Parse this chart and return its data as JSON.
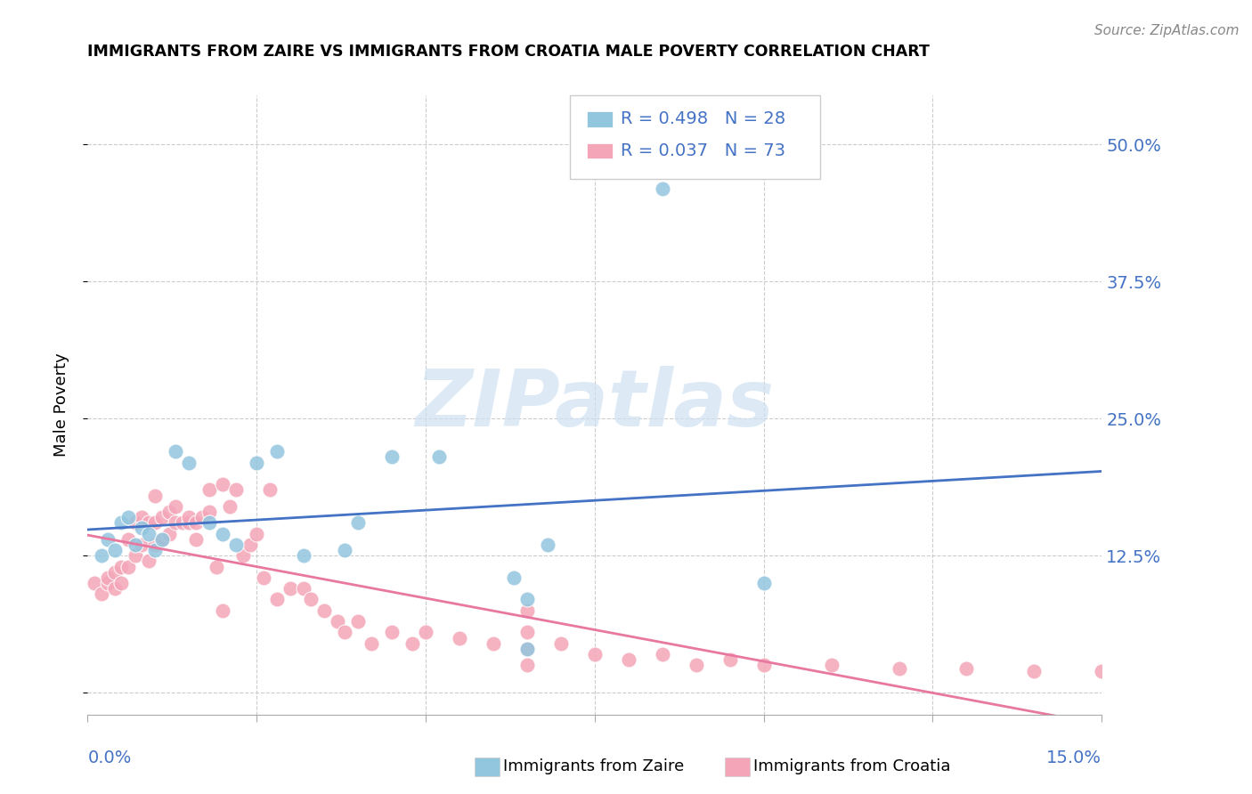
{
  "title": "IMMIGRANTS FROM ZAIRE VS IMMIGRANTS FROM CROATIA MALE POVERTY CORRELATION CHART",
  "source": "Source: ZipAtlas.com",
  "ylabel": "Male Poverty",
  "zaire_color": "#92c5de",
  "croatia_color": "#f4a6b8",
  "zaire_line_color": "#4472c4",
  "croatia_line_color": "#e878a0",
  "zaire_R": 0.498,
  "zaire_N": 28,
  "croatia_R": 0.037,
  "croatia_N": 73,
  "legend_text_color": "#4472c4",
  "axis_label_color": "#4472c4",
  "watermark_color": "#cfe2f3",
  "xlim": [
    0.0,
    0.15
  ],
  "ylim": [
    -0.02,
    0.545
  ],
  "yticks": [
    0.0,
    0.125,
    0.25,
    0.375,
    0.5
  ],
  "ytick_labels": [
    "",
    "12.5%",
    "25.0%",
    "37.5%",
    "50.0%"
  ],
  "zaire_x": [
    0.002,
    0.003,
    0.004,
    0.005,
    0.006,
    0.007,
    0.008,
    0.009,
    0.01,
    0.011,
    0.013,
    0.015,
    0.018,
    0.02,
    0.022,
    0.025,
    0.028,
    0.032,
    0.038,
    0.04,
    0.045,
    0.052,
    0.063,
    0.068,
    0.085,
    0.1,
    0.065,
    0.065
  ],
  "zaire_y": [
    0.125,
    0.14,
    0.13,
    0.155,
    0.16,
    0.135,
    0.15,
    0.145,
    0.13,
    0.14,
    0.22,
    0.21,
    0.155,
    0.145,
    0.135,
    0.21,
    0.22,
    0.125,
    0.13,
    0.155,
    0.215,
    0.215,
    0.105,
    0.135,
    0.46,
    0.1,
    0.085,
    0.04
  ],
  "croatia_x": [
    0.001,
    0.002,
    0.003,
    0.003,
    0.004,
    0.004,
    0.005,
    0.005,
    0.006,
    0.006,
    0.007,
    0.007,
    0.008,
    0.008,
    0.009,
    0.009,
    0.01,
    0.01,
    0.011,
    0.011,
    0.012,
    0.012,
    0.013,
    0.013,
    0.014,
    0.015,
    0.015,
    0.016,
    0.016,
    0.017,
    0.018,
    0.018,
    0.019,
    0.02,
    0.021,
    0.022,
    0.023,
    0.024,
    0.025,
    0.026,
    0.027,
    0.028,
    0.03,
    0.032,
    0.033,
    0.035,
    0.037,
    0.038,
    0.04,
    0.042,
    0.045,
    0.048,
    0.05,
    0.055,
    0.06,
    0.065,
    0.07,
    0.075,
    0.08,
    0.085,
    0.09,
    0.095,
    0.1,
    0.11,
    0.12,
    0.13,
    0.14,
    0.15,
    0.065,
    0.065,
    0.065,
    0.01,
    0.02
  ],
  "croatia_y": [
    0.1,
    0.09,
    0.1,
    0.105,
    0.095,
    0.11,
    0.1,
    0.115,
    0.14,
    0.115,
    0.155,
    0.125,
    0.16,
    0.135,
    0.155,
    0.12,
    0.155,
    0.135,
    0.14,
    0.16,
    0.165,
    0.145,
    0.17,
    0.155,
    0.155,
    0.155,
    0.16,
    0.14,
    0.155,
    0.16,
    0.165,
    0.185,
    0.115,
    0.19,
    0.17,
    0.185,
    0.125,
    0.135,
    0.145,
    0.105,
    0.185,
    0.085,
    0.095,
    0.095,
    0.085,
    0.075,
    0.065,
    0.055,
    0.065,
    0.045,
    0.055,
    0.045,
    0.055,
    0.05,
    0.045,
    0.04,
    0.045,
    0.035,
    0.03,
    0.035,
    0.025,
    0.03,
    0.025,
    0.025,
    0.022,
    0.022,
    0.02,
    0.02,
    0.055,
    0.075,
    0.025,
    0.18,
    0.075
  ]
}
